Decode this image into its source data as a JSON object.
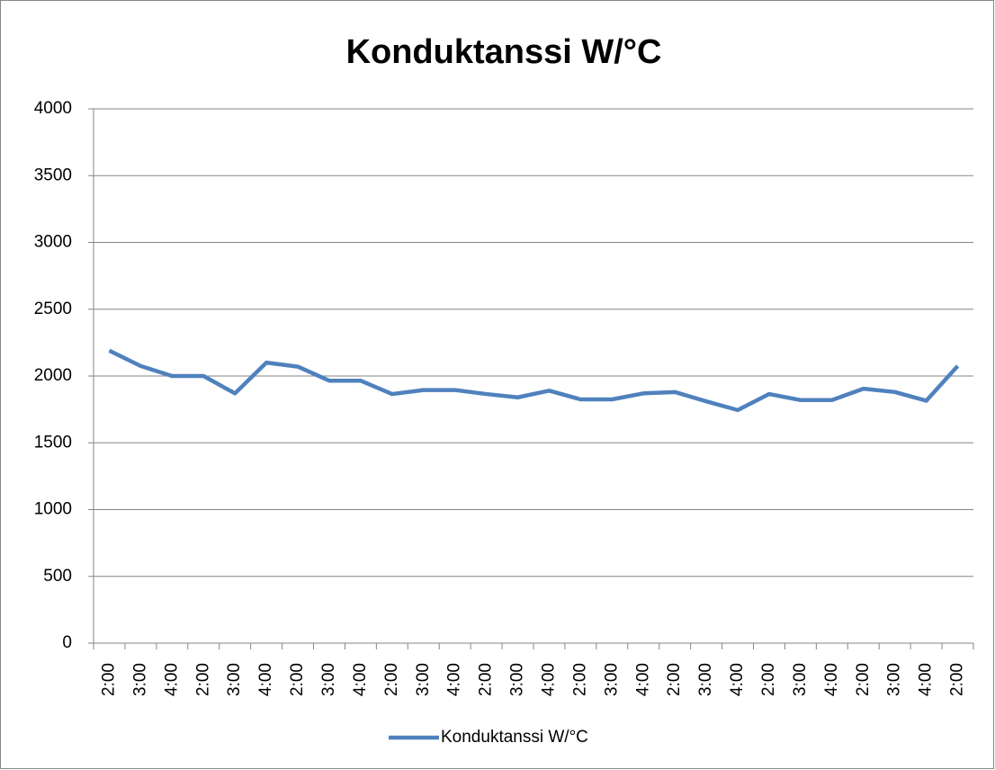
{
  "chart_data": {
    "type": "line",
    "title": "Konduktanssi W/°C",
    "categories": [
      "2:00",
      "3:00",
      "4:00",
      "2:00",
      "3:00",
      "4:00",
      "2:00",
      "3:00",
      "4:00",
      "2:00",
      "3:00",
      "4:00",
      "2:00",
      "3:00",
      "4:00",
      "2:00",
      "3:00",
      "4:00",
      "2:00",
      "3:00",
      "4:00",
      "2:00",
      "3:00",
      "4:00",
      "2:00",
      "3:00",
      "4:00",
      "2:00"
    ],
    "series": [
      {
        "name": "Konduktanssi W/°C",
        "color": "#4f81bd",
        "values": [
          2190,
          2075,
          2000,
          2000,
          1870,
          2100,
          2070,
          1965,
          1965,
          1865,
          1895,
          1895,
          1865,
          1840,
          1890,
          1825,
          1825,
          1870,
          1880,
          1810,
          1745,
          1865,
          1820,
          1820,
          1905,
          1880,
          1815,
          2075
        ]
      }
    ],
    "ylim": [
      0,
      4000
    ],
    "yticks": [
      0,
      500,
      1000,
      1500,
      2000,
      2500,
      3000,
      3500,
      4000
    ],
    "grid": true,
    "legend": "bottom"
  }
}
